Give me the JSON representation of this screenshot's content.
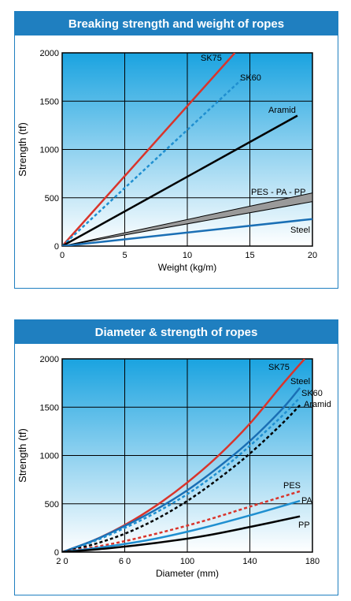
{
  "chart_data": [
    {
      "type": "line",
      "title": "Breaking strength and weight of ropes",
      "xlabel": "Weight (kg/m)",
      "ylabel": "Strength (tf)",
      "xlim": [
        0,
        20
      ],
      "ylim": [
        0,
        2000
      ],
      "xticks": [
        "0",
        "5",
        "10",
        "15",
        "20"
      ],
      "yticks": [
        "0",
        "500",
        "1000",
        "1500",
        "2000"
      ],
      "grid": true,
      "series": [
        {
          "name": "SK75",
          "color": "#d9342b",
          "dash": false,
          "x": [
            0,
            13.8
          ],
          "y": [
            0,
            2000
          ]
        },
        {
          "name": "SK60",
          "color": "#1f8fd0",
          "dash": true,
          "x": [
            0,
            14.3
          ],
          "y": [
            0,
            1720
          ]
        },
        {
          "name": "Aramid",
          "color": "#000000",
          "dash": false,
          "x": [
            0,
            18.8
          ],
          "y": [
            0,
            1350
          ]
        },
        {
          "name": "PES - PA - PP",
          "color": "#8a8a8a",
          "dash": false,
          "band": true,
          "x": [
            0,
            20
          ],
          "y_low": [
            0,
            460
          ],
          "y_high": [
            0,
            550
          ]
        },
        {
          "name": "Steel",
          "color": "#1a6fb5",
          "dash": false,
          "x": [
            0,
            20
          ],
          "y": [
            0,
            280
          ]
        }
      ]
    },
    {
      "type": "line",
      "title": "Diameter & strength of ropes",
      "xlabel": "Diameter (mm)",
      "ylabel": "Strength (tf)",
      "xlim": [
        20,
        180
      ],
      "ylim": [
        0,
        2000
      ],
      "xticks": [
        "2 0",
        "6 0",
        "100",
        "140",
        "180"
      ],
      "yticks": [
        "0",
        "500",
        "1000",
        "1500",
        "2000"
      ],
      "grid": true,
      "series": [
        {
          "name": "SK75",
          "color": "#d9342b",
          "dash": false,
          "x": [
            20,
            40,
            60,
            80,
            100,
            120,
            140,
            160,
            175
          ],
          "y": [
            0,
            120,
            280,
            480,
            720,
            1000,
            1330,
            1720,
            2000
          ]
        },
        {
          "name": "Steel",
          "color": "#1a6fb5",
          "dash": false,
          "x": [
            20,
            40,
            60,
            80,
            100,
            120,
            140,
            160,
            172
          ],
          "y": [
            0,
            120,
            270,
            440,
            640,
            880,
            1150,
            1470,
            1700
          ]
        },
        {
          "name": "SK60",
          "color": "#1f8fd0",
          "dash": true,
          "x": [
            20,
            40,
            60,
            80,
            100,
            120,
            140,
            160,
            172
          ],
          "y": [
            0,
            110,
            250,
            410,
            600,
            830,
            1100,
            1400,
            1600
          ]
        },
        {
          "name": "Aramid",
          "color": "#000000",
          "dash": true,
          "x": [
            20,
            40,
            60,
            80,
            100,
            120,
            140,
            160,
            172
          ],
          "y": [
            0,
            80,
            190,
            340,
            530,
            760,
            1020,
            1320,
            1520
          ]
        },
        {
          "name": "PES",
          "color": "#d9342b",
          "dash": true,
          "x": [
            20,
            50,
            80,
            110,
            140,
            172
          ],
          "y": [
            0,
            80,
            190,
            320,
            470,
            630
          ]
        },
        {
          "name": "PA",
          "color": "#1f8fd0",
          "dash": false,
          "x": [
            20,
            50,
            80,
            110,
            140,
            172
          ],
          "y": [
            0,
            60,
            140,
            250,
            380,
            530
          ]
        },
        {
          "name": "PP",
          "color": "#000000",
          "dash": false,
          "x": [
            20,
            50,
            80,
            110,
            140,
            172
          ],
          "y": [
            0,
            40,
            95,
            165,
            260,
            370
          ]
        }
      ]
    }
  ]
}
